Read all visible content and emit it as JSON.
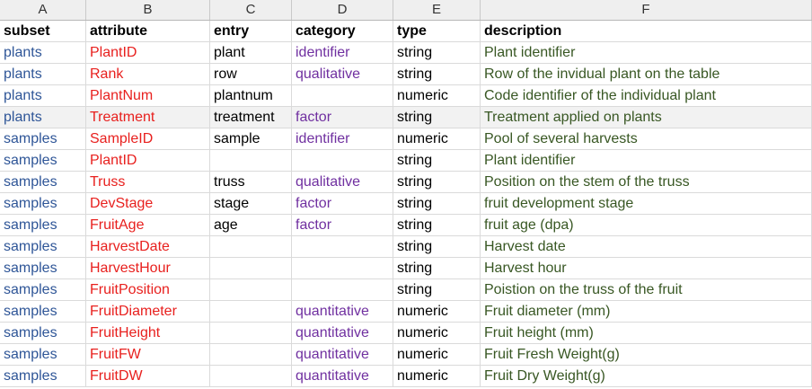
{
  "columns": [
    "A",
    "B",
    "C",
    "D",
    "E",
    "F"
  ],
  "header": {
    "subset": "subset",
    "attribute": "attribute",
    "entry": "entry",
    "category": "category",
    "type": "type",
    "description": "description"
  },
  "rows": [
    {
      "subset": "plants",
      "attribute": "PlantID",
      "entry": "plant",
      "category": "identifier",
      "type": "string",
      "description": "Plant identifier"
    },
    {
      "subset": "plants",
      "attribute": "Rank",
      "entry": "row",
      "category": "qualitative",
      "type": "string",
      "description": "Row of the invidual plant on the table"
    },
    {
      "subset": "plants",
      "attribute": "PlantNum",
      "entry": "plantnum",
      "category": "",
      "type": "numeric",
      "description": "Code identifier of the individual plant"
    },
    {
      "subset": "plants",
      "attribute": "Treatment",
      "entry": "treatment",
      "category": "factor",
      "type": "string",
      "description": "Treatment applied on plants",
      "selected": true
    },
    {
      "subset": "samples",
      "attribute": "SampleID",
      "entry": "sample",
      "category": "identifier",
      "type": "numeric",
      "description": "Pool of several harvests"
    },
    {
      "subset": "samples",
      "attribute": "PlantID",
      "entry": "",
      "category": "",
      "type": "string",
      "description": "Plant identifier"
    },
    {
      "subset": "samples",
      "attribute": "Truss",
      "entry": "truss",
      "category": "qualitative",
      "type": "string",
      "description": "Position on the stem of the truss"
    },
    {
      "subset": "samples",
      "attribute": "DevStage",
      "entry": "stage",
      "category": "factor",
      "type": "string",
      "description": "fruit development stage"
    },
    {
      "subset": "samples",
      "attribute": "FruitAge",
      "entry": "age",
      "category": "factor",
      "type": "string",
      "description": "fruit age (dpa)"
    },
    {
      "subset": "samples",
      "attribute": "HarvestDate",
      "entry": "",
      "category": "",
      "type": "string",
      "description": "Harvest date"
    },
    {
      "subset": "samples",
      "attribute": "HarvestHour",
      "entry": "",
      "category": "",
      "type": "string",
      "description": "Harvest hour"
    },
    {
      "subset": "samples",
      "attribute": "FruitPosition",
      "entry": "",
      "category": "",
      "type": "string",
      "description": "Poistion on the truss of the fruit"
    },
    {
      "subset": "samples",
      "attribute": "FruitDiameter",
      "entry": "",
      "category": "quantitative",
      "type": "numeric",
      "description": "Fruit diameter (mm)"
    },
    {
      "subset": "samples",
      "attribute": "FruitHeight",
      "entry": "",
      "category": "quantitative",
      "type": "numeric",
      "description": "Fruit height (mm)"
    },
    {
      "subset": "samples",
      "attribute": "FruitFW",
      "entry": "",
      "category": "quantitative",
      "type": "numeric",
      "description": "Fruit Fresh Weight(g)"
    },
    {
      "subset": "samples",
      "attribute": "FruitDW",
      "entry": "",
      "category": "quantitative",
      "type": "numeric",
      "description": "Fruit Dry Weight(g)"
    }
  ]
}
